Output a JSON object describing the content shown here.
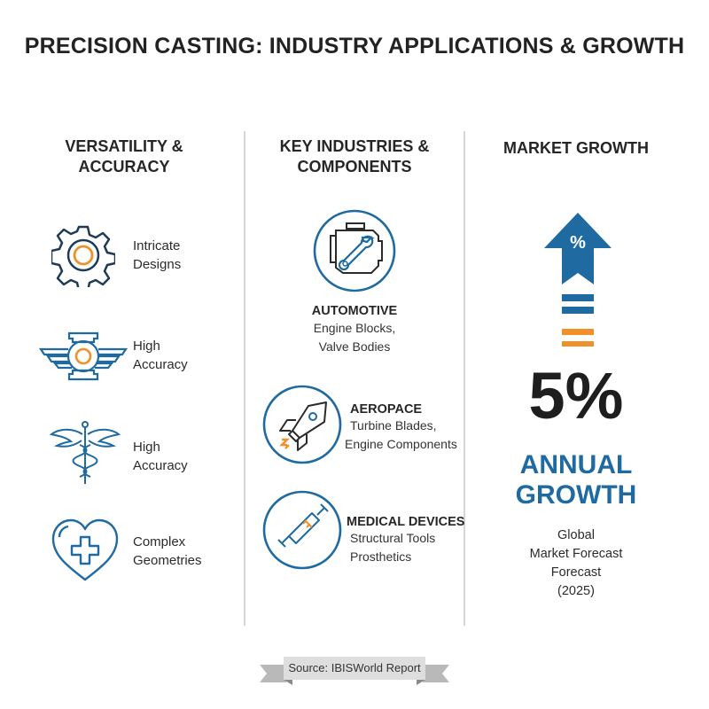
{
  "title": "PRECISION CASTING: INDUSTRY APPLICATIONS & GROWTH",
  "colors": {
    "blue": "#1f6aa0",
    "orange": "#f0902a",
    "dark": "#262626",
    "divider": "#d6d6d6"
  },
  "columns": {
    "versatility": {
      "heading_line1": "VERSATILITY &",
      "heading_line2": "ACCURACY",
      "items": [
        {
          "icon": "gear-icon",
          "line1": "Intricate",
          "line2": "Designs"
        },
        {
          "icon": "winged-emblem-icon",
          "line1": "High",
          "line2": "Accuracy"
        },
        {
          "icon": "caduceus-icon",
          "line1": "High",
          "line2": "Accuracy"
        },
        {
          "icon": "heart-cross-icon",
          "line1": "Complex",
          "line2": "Geometries"
        }
      ]
    },
    "industries": {
      "heading_line1": "KEY INDUSTRIES &",
      "heading_line2": "COMPONENTS",
      "items": [
        {
          "icon": "engine-wrench-icon",
          "title": "AUTOMOTIVE",
          "line1": "Engine Blocks,",
          "line2": "Valve Bodies"
        },
        {
          "icon": "rocket-icon",
          "title": "AEROPACE",
          "line1": "Turbine Blades,",
          "line2": "Engine Components"
        },
        {
          "icon": "syringe-icon",
          "title": "MEDICAL DEVICES",
          "line1": "Structural Tools",
          "line2": "Prosthetics"
        }
      ]
    },
    "market": {
      "heading": "MARKET GROWTH",
      "arrow_symbol": "%",
      "value": "5%",
      "growth_line1": "ANNUAL",
      "growth_line2": "GROWTH",
      "note_line1": "Global",
      "note_line2": "Market Forecast",
      "note_line3": "Forecast",
      "note_line4": "(2025)"
    }
  },
  "source": "Source: IBISWorld Report"
}
